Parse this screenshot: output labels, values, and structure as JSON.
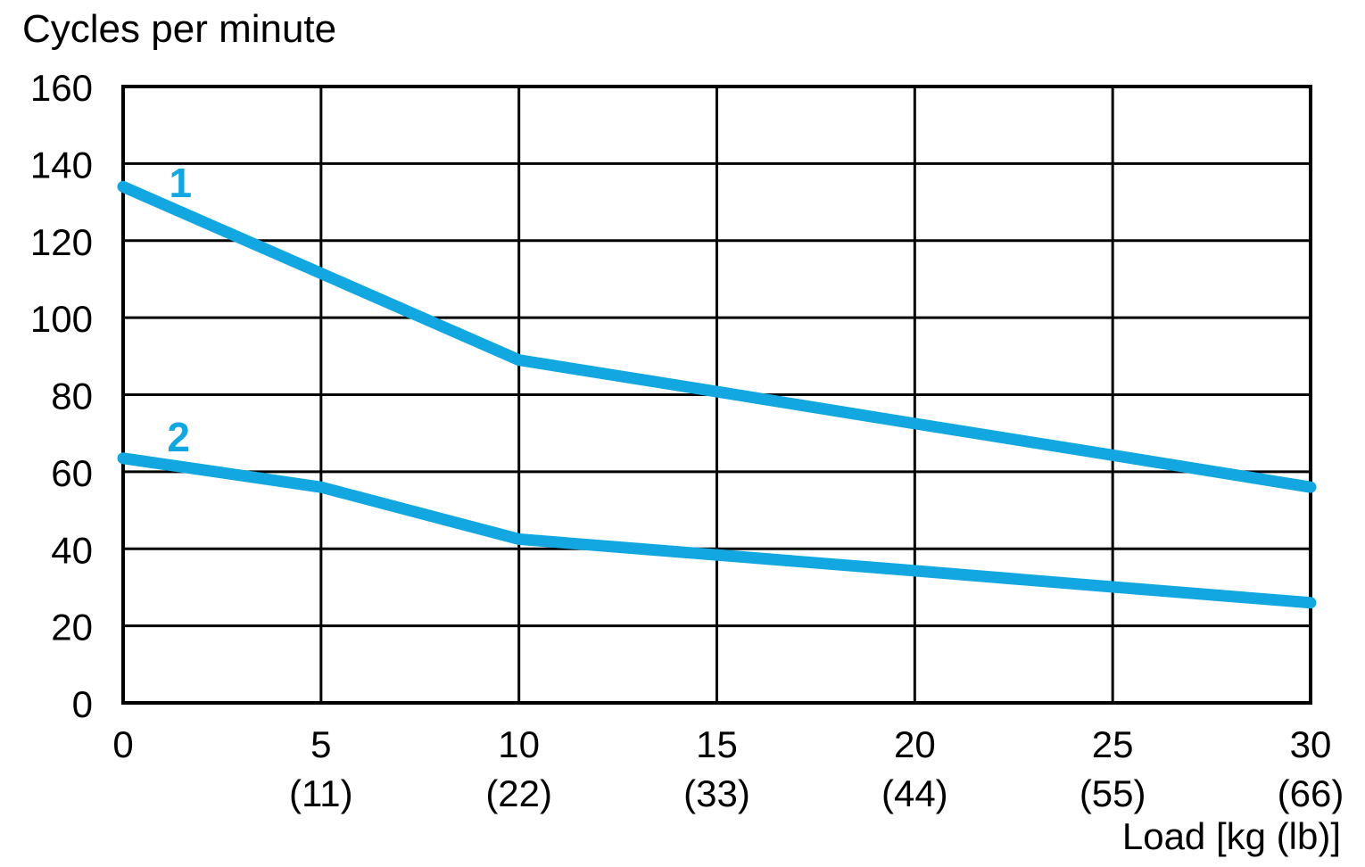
{
  "page": {
    "background": "#FFFFFF"
  },
  "chart_data": {
    "type": "line",
    "title": "Cycles per minute",
    "ylabel": "Cycles per minute",
    "xlabel": "Load [kg (lb)]",
    "xlim": [
      0,
      30
    ],
    "ylim": [
      0,
      160
    ],
    "grid": true,
    "legend_position": "inline-labels",
    "line_color": "#12A7E1",
    "grid_color": "#000000",
    "text_color": "#000000",
    "y_ticks": [
      0,
      20,
      40,
      60,
      80,
      100,
      120,
      140,
      160
    ],
    "x_ticks": [
      {
        "kg": 0,
        "label": "0",
        "sub": ""
      },
      {
        "kg": 5,
        "label": "5",
        "sub": "(11)"
      },
      {
        "kg": 10,
        "label": "10",
        "sub": "(22)"
      },
      {
        "kg": 15,
        "label": "15",
        "sub": "(33)"
      },
      {
        "kg": 20,
        "label": "20",
        "sub": "(44)"
      },
      {
        "kg": 25,
        "label": "25",
        "sub": "(55)"
      },
      {
        "kg": 30,
        "label": "30",
        "sub": "(66)"
      }
    ],
    "series": [
      {
        "name": "1",
        "label_pos": {
          "x": 1.45,
          "y": 135
        },
        "points": [
          [
            0,
            134
          ],
          [
            5,
            111.5
          ],
          [
            10,
            89
          ],
          [
            15,
            80.8
          ],
          [
            20,
            72.5
          ],
          [
            25,
            64.3
          ],
          [
            30,
            56
          ]
        ]
      },
      {
        "name": "2",
        "label_pos": {
          "x": 1.4,
          "y": 69
        },
        "points": [
          [
            0,
            63.5
          ],
          [
            5,
            56
          ],
          [
            10,
            42.5
          ],
          [
            15,
            38.4
          ],
          [
            20,
            34.3
          ],
          [
            25,
            30.1
          ],
          [
            30,
            26
          ]
        ]
      }
    ]
  }
}
